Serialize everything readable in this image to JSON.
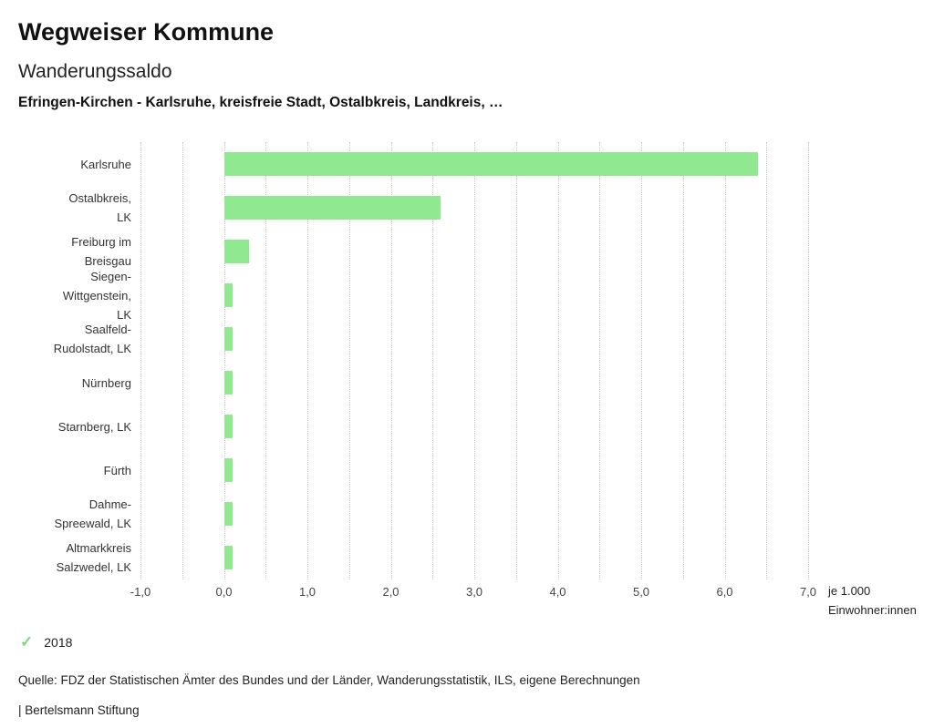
{
  "header": {
    "title": "Wegweiser Kommune",
    "subtitle": "Wanderungssaldo",
    "description": "Efringen-Kirchen - Karlsruhe, kreisfreie Stadt, Ostalbkreis, Landkreis, …"
  },
  "chart_data": {
    "type": "bar",
    "orientation": "horizontal",
    "title": "Wanderungssaldo",
    "categories": [
      "Karlsruhe",
      "Ostalbkreis, LK",
      "Freiburg im Breisgau",
      "Siegen-Wittgenstein, LK",
      "Saalfeld-Rudolstadt, LK",
      "Nürnberg",
      "Starnberg, LK",
      "Fürth",
      "Dahme-Spreewald, LK",
      "Altmarkkreis Salzwedel, LK"
    ],
    "category_lines": [
      [
        "Karlsruhe"
      ],
      [
        "Ostalbkreis,",
        "LK"
      ],
      [
        "Freiburg im",
        "Breisgau"
      ],
      [
        "Siegen-",
        "Wittgenstein,",
        "LK"
      ],
      [
        "Saalfeld-",
        "Rudolstadt, LK"
      ],
      [
        "Nürnberg"
      ],
      [
        "Starnberg, LK"
      ],
      [
        "Fürth"
      ],
      [
        "Dahme-",
        "Spreewald, LK"
      ],
      [
        "Altmarkkreis",
        "Salzwedel, LK"
      ]
    ],
    "series": [
      {
        "name": "2018",
        "values": [
          6.4,
          2.6,
          0.3,
          0.1,
          0.1,
          0.1,
          0.1,
          0.1,
          0.1,
          0.1
        ]
      }
    ],
    "xlim": [
      -1.0,
      7.0
    ],
    "x_tick_values": [
      -1,
      0,
      1,
      2,
      3,
      4,
      5,
      6,
      7
    ],
    "x_ticks": [
      "-1,0",
      "0,0",
      "1,0",
      "2,0",
      "3,0",
      "4,0",
      "5,0",
      "6,0",
      "7,0"
    ],
    "gridline_step": 0.5,
    "grid": "dotted",
    "xlabel": "je 1.000 Einwohner:innen",
    "unit_label_lines": [
      "je 1.000",
      "Einwohner:innen"
    ],
    "bar_color": "#90e890",
    "grid_color": "#c9c9c9"
  },
  "legend": {
    "year_label": "2018",
    "check_color": "#7fd87f"
  },
  "footer": {
    "source": "Quelle: FDZ der Statistischen Ämter des Bundes und der Länder, Wanderungsstatistik, ILS, eigene Berechnungen",
    "brand": "| Bertelsmann Stiftung"
  }
}
